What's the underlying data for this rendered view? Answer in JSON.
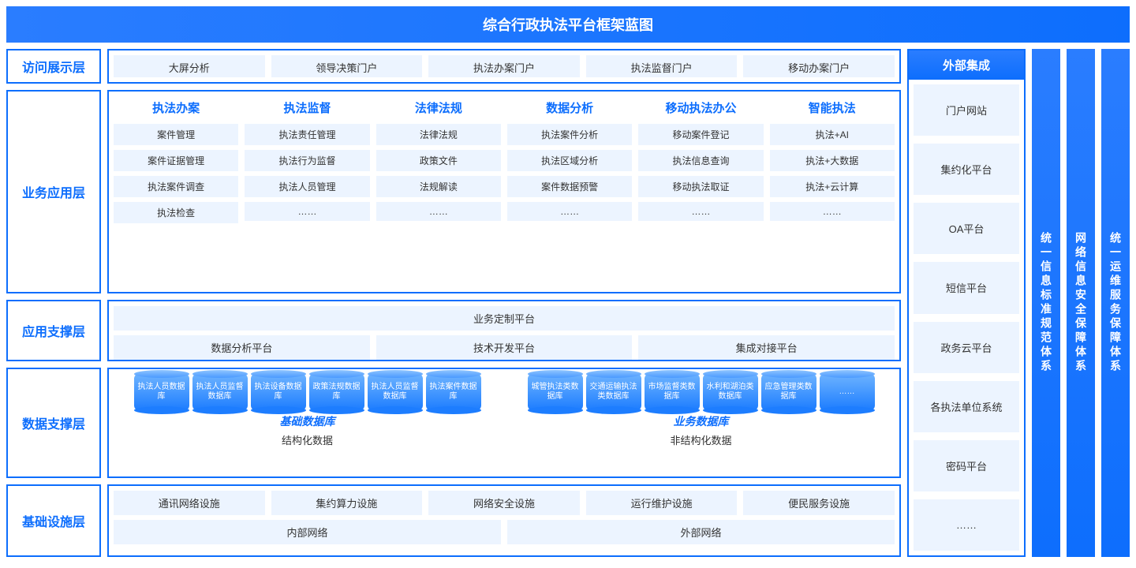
{
  "title": "综合行政执法平台框架蓝图",
  "colors": {
    "primary": "#0d6efd",
    "light": "#ecf4ff"
  },
  "layers": {
    "access": {
      "label": "访问展示层",
      "items": [
        "大屏分析",
        "领导决策门户",
        "执法办案门户",
        "执法监督门户",
        "移动办案门户"
      ]
    },
    "business": {
      "label": "业务应用层",
      "categories": [
        {
          "title": "执法办案",
          "items": [
            "案件管理",
            "案件证据管理",
            "执法案件调查",
            "执法检查"
          ]
        },
        {
          "title": "执法监督",
          "items": [
            "执法责任管理",
            "执法行为监督",
            "执法人员管理",
            "……"
          ]
        },
        {
          "title": "法律法规",
          "items": [
            "法律法规",
            "政策文件",
            "法规解读",
            "……"
          ]
        },
        {
          "title": "数据分析",
          "items": [
            "执法案件分析",
            "执法区域分析",
            "案件数据预警",
            "……"
          ]
        },
        {
          "title": "移动执法办公",
          "items": [
            "移动案件登记",
            "执法信息查询",
            "移动执法取证",
            "……"
          ]
        },
        {
          "title": "智能执法",
          "items": [
            "执法+AI",
            "执法+大数据",
            "执法+云计算",
            "……"
          ]
        }
      ]
    },
    "support": {
      "label": "应用支撑层",
      "top": "业务定制平台",
      "row": [
        "数据分析平台",
        "技术开发平台",
        "集成对接平台"
      ]
    },
    "data": {
      "label": "数据支撑层",
      "left": {
        "title": "基础数据库",
        "sub": "结构化数据",
        "dbs": [
          "执法人员数据库",
          "执法人员监督数据库",
          "执法设备数据库",
          "政策法规数据库",
          "执法人员监督数据库",
          "执法案件数据库"
        ]
      },
      "right": {
        "title": "业务数据库",
        "sub": "非结构化数据",
        "dbs": [
          "城管执法类数据库",
          "交通运输执法类数据库",
          "市场监督类数据库",
          "水利和湖泊类数据库",
          "应急管理类数据库",
          "……"
        ]
      }
    },
    "infra": {
      "label": "基础设施层",
      "row1": [
        "通讯网络设施",
        "集约算力设施",
        "网络安全设施",
        "运行维护设施",
        "便民服务设施"
      ],
      "row2": [
        "内部网络",
        "外部网络"
      ]
    }
  },
  "external": {
    "header": "外部集成",
    "items": [
      "门户网站",
      "集约化平台",
      "OA平台",
      "短信平台",
      "政务云平台",
      "各执法单位系统",
      "密码平台",
      "……"
    ]
  },
  "vbars": [
    "统一信息标准规范体系",
    "网络信息安全保障体系",
    "统一运维服务保障体系"
  ]
}
